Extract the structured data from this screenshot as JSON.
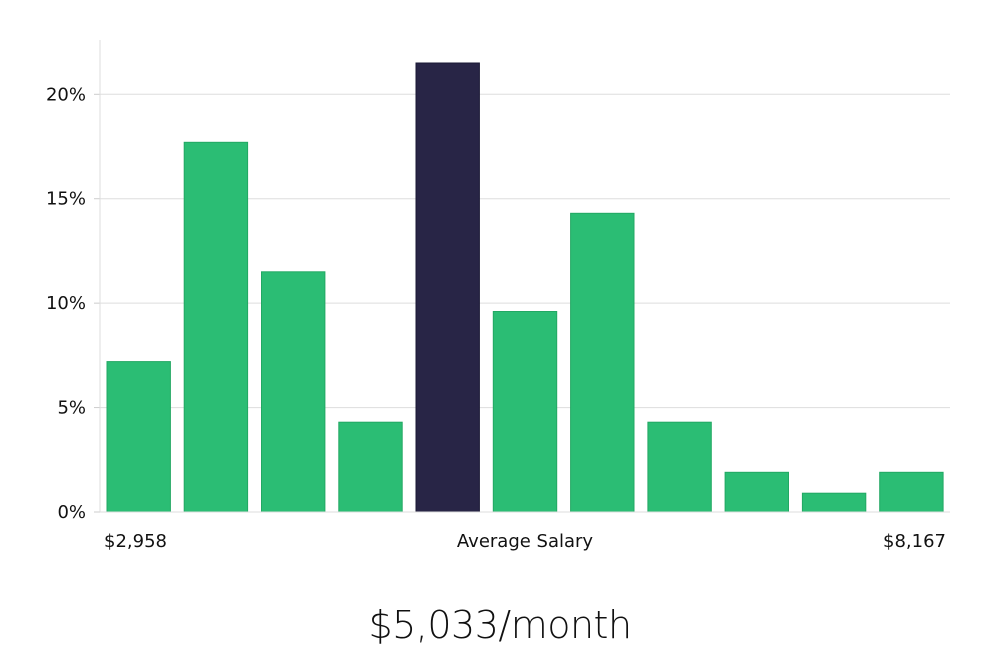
{
  "chart_data": {
    "type": "bar",
    "values": [
      7.2,
      17.7,
      11.5,
      4.3,
      21.5,
      9.6,
      14.3,
      4.3,
      1.9,
      0.9,
      1.9
    ],
    "highlight_index": 4,
    "yticks": [
      0,
      5,
      10,
      15,
      20
    ],
    "ytick_labels": [
      "0%",
      "5%",
      "10%",
      "15%",
      "20%"
    ],
    "ylim": [
      0,
      22.6
    ],
    "x_axis_labels": {
      "left": "$2,958",
      "center": "Average Salary",
      "right": "$8,167"
    },
    "colors": {
      "bar": "#2bbd74",
      "bar_edge": "#22a863",
      "highlight": "#282546",
      "grid": "#dddddd",
      "axis": "#cccccc"
    },
    "grid": true
  },
  "salary": "$5,033/month"
}
